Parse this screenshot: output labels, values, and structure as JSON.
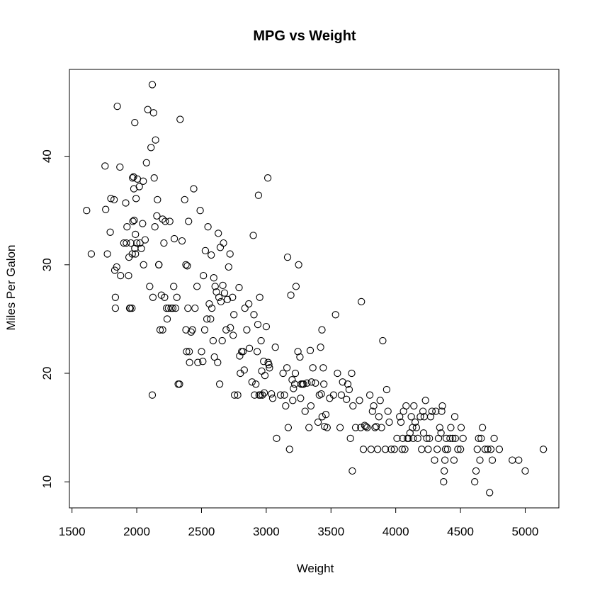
{
  "chart_data": {
    "type": "scatter",
    "title": "MPG vs Weight",
    "xlabel": "Weight",
    "ylabel": "Miles Per Galon",
    "xlim": [
      1480,
      5260
    ],
    "ylim": [
      7.6,
      48.0
    ],
    "xticks": [
      1500,
      2000,
      2500,
      3000,
      3500,
      4000,
      4500,
      5000
    ],
    "yticks": [
      10,
      20,
      30,
      40
    ],
    "grid": false,
    "legend": "none",
    "colors": {
      "points": "#000000",
      "background": "#ffffff"
    },
    "points": [
      [
        1613,
        35
      ],
      [
        1649,
        31
      ],
      [
        1755,
        39.1
      ],
      [
        1760,
        35.1
      ],
      [
        1773,
        31
      ],
      [
        1795,
        33
      ],
      [
        1800,
        36.1
      ],
      [
        1825,
        36
      ],
      [
        1830,
        29.5
      ],
      [
        1835,
        26
      ],
      [
        1835,
        27
      ],
      [
        1845,
        29.8
      ],
      [
        1850,
        44.6
      ],
      [
        1870,
        39
      ],
      [
        1875,
        29
      ],
      [
        1900,
        32
      ],
      [
        1915,
        35.7
      ],
      [
        1920,
        32
      ],
      [
        1925,
        33.5
      ],
      [
        1937,
        29
      ],
      [
        1940,
        30.7
      ],
      [
        1945,
        26
      ],
      [
        1950,
        26
      ],
      [
        1955,
        32
      ],
      [
        1963,
        26
      ],
      [
        1965,
        31
      ],
      [
        1968,
        38
      ],
      [
        1970,
        34
      ],
      [
        1975,
        38.1
      ],
      [
        1978,
        37
      ],
      [
        1980,
        34.1
      ],
      [
        1985,
        31.5
      ],
      [
        1985,
        43.1
      ],
      [
        1990,
        32.8
      ],
      [
        1990,
        31
      ],
      [
        1995,
        36.1
      ],
      [
        2000,
        32
      ],
      [
        2005,
        37.9
      ],
      [
        2020,
        37.2
      ],
      [
        2025,
        32
      ],
      [
        2035,
        31.5
      ],
      [
        2045,
        33.8
      ],
      [
        2050,
        37.7
      ],
      [
        2053,
        30
      ],
      [
        2065,
        32.3
      ],
      [
        2075,
        39.4
      ],
      [
        2085,
        44.3
      ],
      [
        2100,
        28
      ],
      [
        2110,
        40.8
      ],
      [
        2120,
        46.6
      ],
      [
        2120,
        18
      ],
      [
        2125,
        27
      ],
      [
        2130,
        44
      ],
      [
        2135,
        38
      ],
      [
        2140,
        33.5
      ],
      [
        2145,
        41.5
      ],
      [
        2155,
        34.5
      ],
      [
        2160,
        36
      ],
      [
        2170,
        30
      ],
      [
        2171,
        30
      ],
      [
        2180,
        24
      ],
      [
        2190,
        27.2
      ],
      [
        2200,
        34.2
      ],
      [
        2200,
        24
      ],
      [
        2210,
        32
      ],
      [
        2215,
        27
      ],
      [
        2220,
        34
      ],
      [
        2230,
        26
      ],
      [
        2235,
        25
      ],
      [
        2245,
        26
      ],
      [
        2255,
        34
      ],
      [
        2265,
        26
      ],
      [
        2278,
        26
      ],
      [
        2285,
        28
      ],
      [
        2290,
        32.4
      ],
      [
        2300,
        26
      ],
      [
        2310,
        27
      ],
      [
        2320,
        19
      ],
      [
        2330,
        19
      ],
      [
        2335,
        43.4
      ],
      [
        2350,
        32.2
      ],
      [
        2370,
        36
      ],
      [
        2380,
        30
      ],
      [
        2380,
        24
      ],
      [
        2385,
        22
      ],
      [
        2390,
        29.9
      ],
      [
        2395,
        26
      ],
      [
        2400,
        34
      ],
      [
        2405,
        22
      ],
      [
        2408,
        21
      ],
      [
        2420,
        23.8
      ],
      [
        2430,
        24
      ],
      [
        2440,
        37
      ],
      [
        2450,
        26
      ],
      [
        2465,
        28
      ],
      [
        2472,
        21
      ],
      [
        2490,
        35
      ],
      [
        2500,
        22
      ],
      [
        2510,
        21.1
      ],
      [
        2515,
        29
      ],
      [
        2525,
        24
      ],
      [
        2530,
        31.3
      ],
      [
        2542,
        25
      ],
      [
        2550,
        33.5
      ],
      [
        2560,
        26.4
      ],
      [
        2570,
        25
      ],
      [
        2575,
        30.9
      ],
      [
        2580,
        26
      ],
      [
        2590,
        23
      ],
      [
        2595,
        28.8
      ],
      [
        2600,
        21.5
      ],
      [
        2605,
        28
      ],
      [
        2615,
        27.5
      ],
      [
        2625,
        21
      ],
      [
        2630,
        32.9
      ],
      [
        2635,
        27
      ],
      [
        2640,
        19
      ],
      [
        2645,
        31.6
      ],
      [
        2650,
        26.6
      ],
      [
        2660,
        23
      ],
      [
        2665,
        28.1
      ],
      [
        2670,
        32
      ],
      [
        2678,
        27.4
      ],
      [
        2690,
        24
      ],
      [
        2700,
        26.8
      ],
      [
        2710,
        29.8
      ],
      [
        2720,
        31
      ],
      [
        2723,
        24.2
      ],
      [
        2740,
        27
      ],
      [
        2745,
        23.5
      ],
      [
        2750,
        25.4
      ],
      [
        2755,
        18
      ],
      [
        2780,
        18
      ],
      [
        2790,
        27.9
      ],
      [
        2795,
        21.6
      ],
      [
        2800,
        20
      ],
      [
        2810,
        22
      ],
      [
        2820,
        22
      ],
      [
        2830,
        20.3
      ],
      [
        2835,
        26
      ],
      [
        2850,
        24
      ],
      [
        2865,
        26.4
      ],
      [
        2870,
        22.3
      ],
      [
        2890,
        19.2
      ],
      [
        2900,
        32.7
      ],
      [
        2905,
        25.4
      ],
      [
        2910,
        18
      ],
      [
        2920,
        19
      ],
      [
        2930,
        22
      ],
      [
        2935,
        24.5
      ],
      [
        2940,
        36.4
      ],
      [
        2945,
        18
      ],
      [
        2950,
        27
      ],
      [
        2955,
        18
      ],
      [
        2960,
        23
      ],
      [
        2965,
        20.2
      ],
      [
        2970,
        18
      ],
      [
        2980,
        21.1
      ],
      [
        2985,
        18.2
      ],
      [
        2990,
        19.8
      ],
      [
        3000,
        24.3
      ],
      [
        3012,
        38
      ],
      [
        3015,
        21
      ],
      [
        3020,
        20.8
      ],
      [
        3025,
        20.5
      ],
      [
        3040,
        18.1
      ],
      [
        3050,
        17.7
      ],
      [
        3070,
        22.4
      ],
      [
        3080,
        14
      ],
      [
        3110,
        18
      ],
      [
        3130,
        20
      ],
      [
        3140,
        18
      ],
      [
        3150,
        17
      ],
      [
        3160,
        20.5
      ],
      [
        3165,
        30.7
      ],
      [
        3170,
        15
      ],
      [
        3180,
        13
      ],
      [
        3190,
        27.2
      ],
      [
        3200,
        19.4
      ],
      [
        3205,
        17.5
      ],
      [
        3210,
        18.6
      ],
      [
        3220,
        19
      ],
      [
        3225,
        20
      ],
      [
        3230,
        28
      ],
      [
        3245,
        22
      ],
      [
        3250,
        30
      ],
      [
        3260,
        21.5
      ],
      [
        3265,
        17.7
      ],
      [
        3270,
        19
      ],
      [
        3280,
        19
      ],
      [
        3288,
        19
      ],
      [
        3300,
        16.5
      ],
      [
        3315,
        19.1
      ],
      [
        3330,
        15
      ],
      [
        3340,
        22.1
      ],
      [
        3345,
        17
      ],
      [
        3350,
        19.2
      ],
      [
        3360,
        20.5
      ],
      [
        3380,
        19.1
      ],
      [
        3400,
        15.5
      ],
      [
        3410,
        18
      ],
      [
        3420,
        22.4
      ],
      [
        3425,
        18.1
      ],
      [
        3430,
        24
      ],
      [
        3432,
        16
      ],
      [
        3440,
        20.5
      ],
      [
        3445,
        19
      ],
      [
        3450,
        15.1
      ],
      [
        3460,
        16.2
      ],
      [
        3470,
        15
      ],
      [
        3490,
        17.7
      ],
      [
        3520,
        18
      ],
      [
        3535,
        25.4
      ],
      [
        3550,
        20
      ],
      [
        3570,
        15
      ],
      [
        3580,
        18
      ],
      [
        3590,
        19.2
      ],
      [
        3620,
        17.6
      ],
      [
        3630,
        19
      ],
      [
        3640,
        18.5
      ],
      [
        3650,
        14
      ],
      [
        3660,
        20
      ],
      [
        3665,
        11
      ],
      [
        3670,
        17
      ],
      [
        3690,
        15
      ],
      [
        3720,
        17.5
      ],
      [
        3730,
        15
      ],
      [
        3735,
        26.6
      ],
      [
        3750,
        13
      ],
      [
        3760,
        15.2
      ],
      [
        3770,
        15.1
      ],
      [
        3780,
        15
      ],
      [
        3800,
        18
      ],
      [
        3810,
        13
      ],
      [
        3820,
        16.5
      ],
      [
        3830,
        17
      ],
      [
        3840,
        15
      ],
      [
        3850,
        15.1
      ],
      [
        3860,
        13
      ],
      [
        3870,
        16
      ],
      [
        3880,
        17.5
      ],
      [
        3890,
        15
      ],
      [
        3900,
        23
      ],
      [
        3920,
        13
      ],
      [
        3930,
        18.5
      ],
      [
        3940,
        16.5
      ],
      [
        3950,
        15.5
      ],
      [
        3965,
        13
      ],
      [
        3990,
        13
      ],
      [
        4010,
        14
      ],
      [
        4030,
        16
      ],
      [
        4040,
        15.5
      ],
      [
        4050,
        13
      ],
      [
        4055,
        14
      ],
      [
        4060,
        16.5
      ],
      [
        4070,
        13
      ],
      [
        4080,
        17
      ],
      [
        4090,
        14
      ],
      [
        4100,
        14
      ],
      [
        4110,
        14.5
      ],
      [
        4120,
        16
      ],
      [
        4130,
        15
      ],
      [
        4135,
        14
      ],
      [
        4140,
        17
      ],
      [
        4150,
        15.5
      ],
      [
        4160,
        15
      ],
      [
        4170,
        14
      ],
      [
        4190,
        16
      ],
      [
        4200,
        13
      ],
      [
        4210,
        16.5
      ],
      [
        4215,
        14.5
      ],
      [
        4220,
        16
      ],
      [
        4230,
        17.5
      ],
      [
        4240,
        14
      ],
      [
        4250,
        13
      ],
      [
        4260,
        14
      ],
      [
        4270,
        16
      ],
      [
        4280,
        16.5
      ],
      [
        4300,
        12
      ],
      [
        4310,
        16.5
      ],
      [
        4320,
        13
      ],
      [
        4330,
        14
      ],
      [
        4340,
        15
      ],
      [
        4350,
        14.5
      ],
      [
        4355,
        16.5
      ],
      [
        4360,
        17
      ],
      [
        4370,
        10
      ],
      [
        4375,
        11
      ],
      [
        4380,
        12
      ],
      [
        4385,
        13
      ],
      [
        4390,
        14
      ],
      [
        4400,
        13
      ],
      [
        4420,
        14
      ],
      [
        4425,
        15
      ],
      [
        4440,
        14
      ],
      [
        4450,
        12
      ],
      [
        4456,
        16
      ],
      [
        4460,
        14
      ],
      [
        4480,
        13
      ],
      [
        4500,
        13
      ],
      [
        4505,
        15
      ],
      [
        4520,
        14
      ],
      [
        4610,
        10
      ],
      [
        4620,
        11
      ],
      [
        4630,
        13
      ],
      [
        4640,
        14
      ],
      [
        4650,
        12
      ],
      [
        4660,
        14
      ],
      [
        4670,
        15
      ],
      [
        4690,
        13
      ],
      [
        4710,
        13
      ],
      [
        4725,
        9
      ],
      [
        4735,
        13
      ],
      [
        4746,
        12
      ],
      [
        4760,
        14
      ],
      [
        4800,
        13
      ],
      [
        4900,
        12
      ],
      [
        4950,
        12
      ],
      [
        5000,
        11
      ],
      [
        5140,
        13
      ]
    ]
  }
}
